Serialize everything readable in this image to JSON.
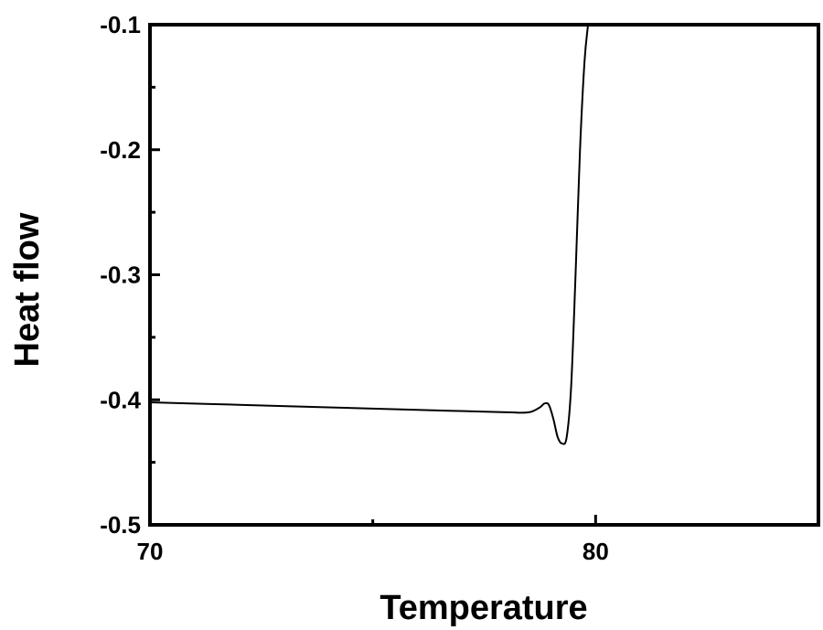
{
  "chart_data": {
    "type": "line",
    "title": "",
    "xlabel": "Temperature",
    "ylabel": "Heat flow",
    "xlim": [
      70,
      85
    ],
    "ylim": [
      -0.5,
      -0.1
    ],
    "x_ticks": [
      70,
      80
    ],
    "x_tick_labels": [
      "70",
      "80"
    ],
    "x_minor_ticks": [
      75
    ],
    "y_ticks": [
      -0.5,
      -0.4,
      -0.3,
      -0.2,
      -0.1
    ],
    "y_tick_labels": [
      "-0.5",
      "-0.4",
      "-0.3",
      "-0.2",
      "-0.1"
    ],
    "y_minor_ticks": [
      -0.45,
      -0.35,
      -0.25,
      -0.15
    ],
    "grid": false,
    "legend": "none",
    "line_color": "#000000",
    "series": [
      {
        "x": [
          70.0,
          72.0,
          74.0,
          76.0,
          78.0,
          78.5,
          78.75,
          78.85,
          78.95,
          79.05,
          79.15,
          79.25,
          79.35,
          79.45,
          79.55,
          79.65,
          79.75,
          79.83
        ],
        "y": [
          -0.402,
          -0.404,
          -0.406,
          -0.408,
          -0.41,
          -0.41,
          -0.406,
          -0.403,
          -0.404,
          -0.415,
          -0.43,
          -0.435,
          -0.43,
          -0.39,
          -0.3,
          -0.2,
          -0.13,
          -0.1
        ]
      }
    ]
  }
}
